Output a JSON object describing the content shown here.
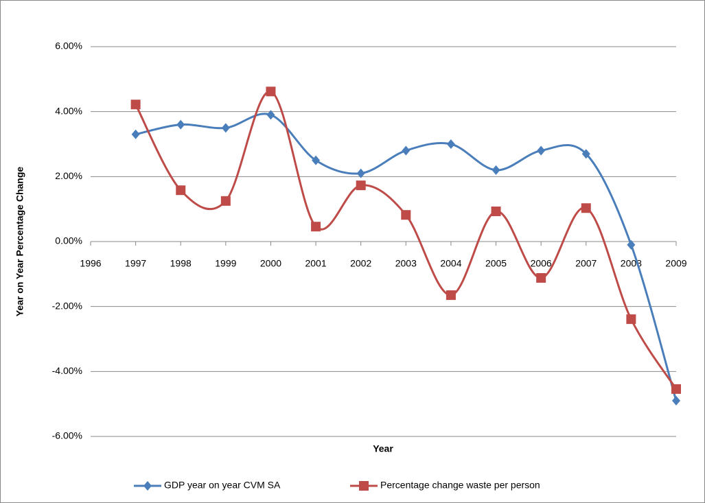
{
  "chart_data": {
    "type": "line",
    "xlabel": "Year",
    "ylabel": "Year on Year Percentage Change",
    "x": [
      1997,
      1998,
      1999,
      2000,
      2001,
      2002,
      2003,
      2004,
      2005,
      2006,
      2007,
      2008,
      2009
    ],
    "series": [
      {
        "name": "GDP year on year CVM SA",
        "color": "#4a7ebb",
        "marker": "diamond",
        "values": [
          3.3,
          3.6,
          3.5,
          3.9,
          2.5,
          2.1,
          2.8,
          3.0,
          2.2,
          2.8,
          2.7,
          -0.1,
          -4.9
        ]
      },
      {
        "name": "Percentage change waste per person",
        "color": "#be4b48",
        "marker": "square",
        "values": [
          4.22,
          1.58,
          1.25,
          4.62,
          0.46,
          1.73,
          0.82,
          -1.65,
          0.93,
          -1.12,
          1.03,
          -2.39,
          -4.54
        ]
      }
    ],
    "xlim": [
      1996,
      2009
    ],
    "xticks": [
      1996,
      1997,
      1998,
      1999,
      2000,
      2001,
      2002,
      2003,
      2004,
      2005,
      2006,
      2007,
      2008,
      2009
    ],
    "ylim": [
      -6,
      6
    ],
    "yticks": [
      {
        "value": -6,
        "label": "-6.00%"
      },
      {
        "value": -4,
        "label": "-4.00%"
      },
      {
        "value": -2,
        "label": "-2.00%"
      },
      {
        "value": 0,
        "label": "0.00%"
      },
      {
        "value": 2,
        "label": "2.00%"
      },
      {
        "value": 4,
        "label": "4.00%"
      },
      {
        "value": 6,
        "label": "6.00%"
      }
    ],
    "grid": true,
    "smooth": true,
    "legend": "bottom"
  }
}
